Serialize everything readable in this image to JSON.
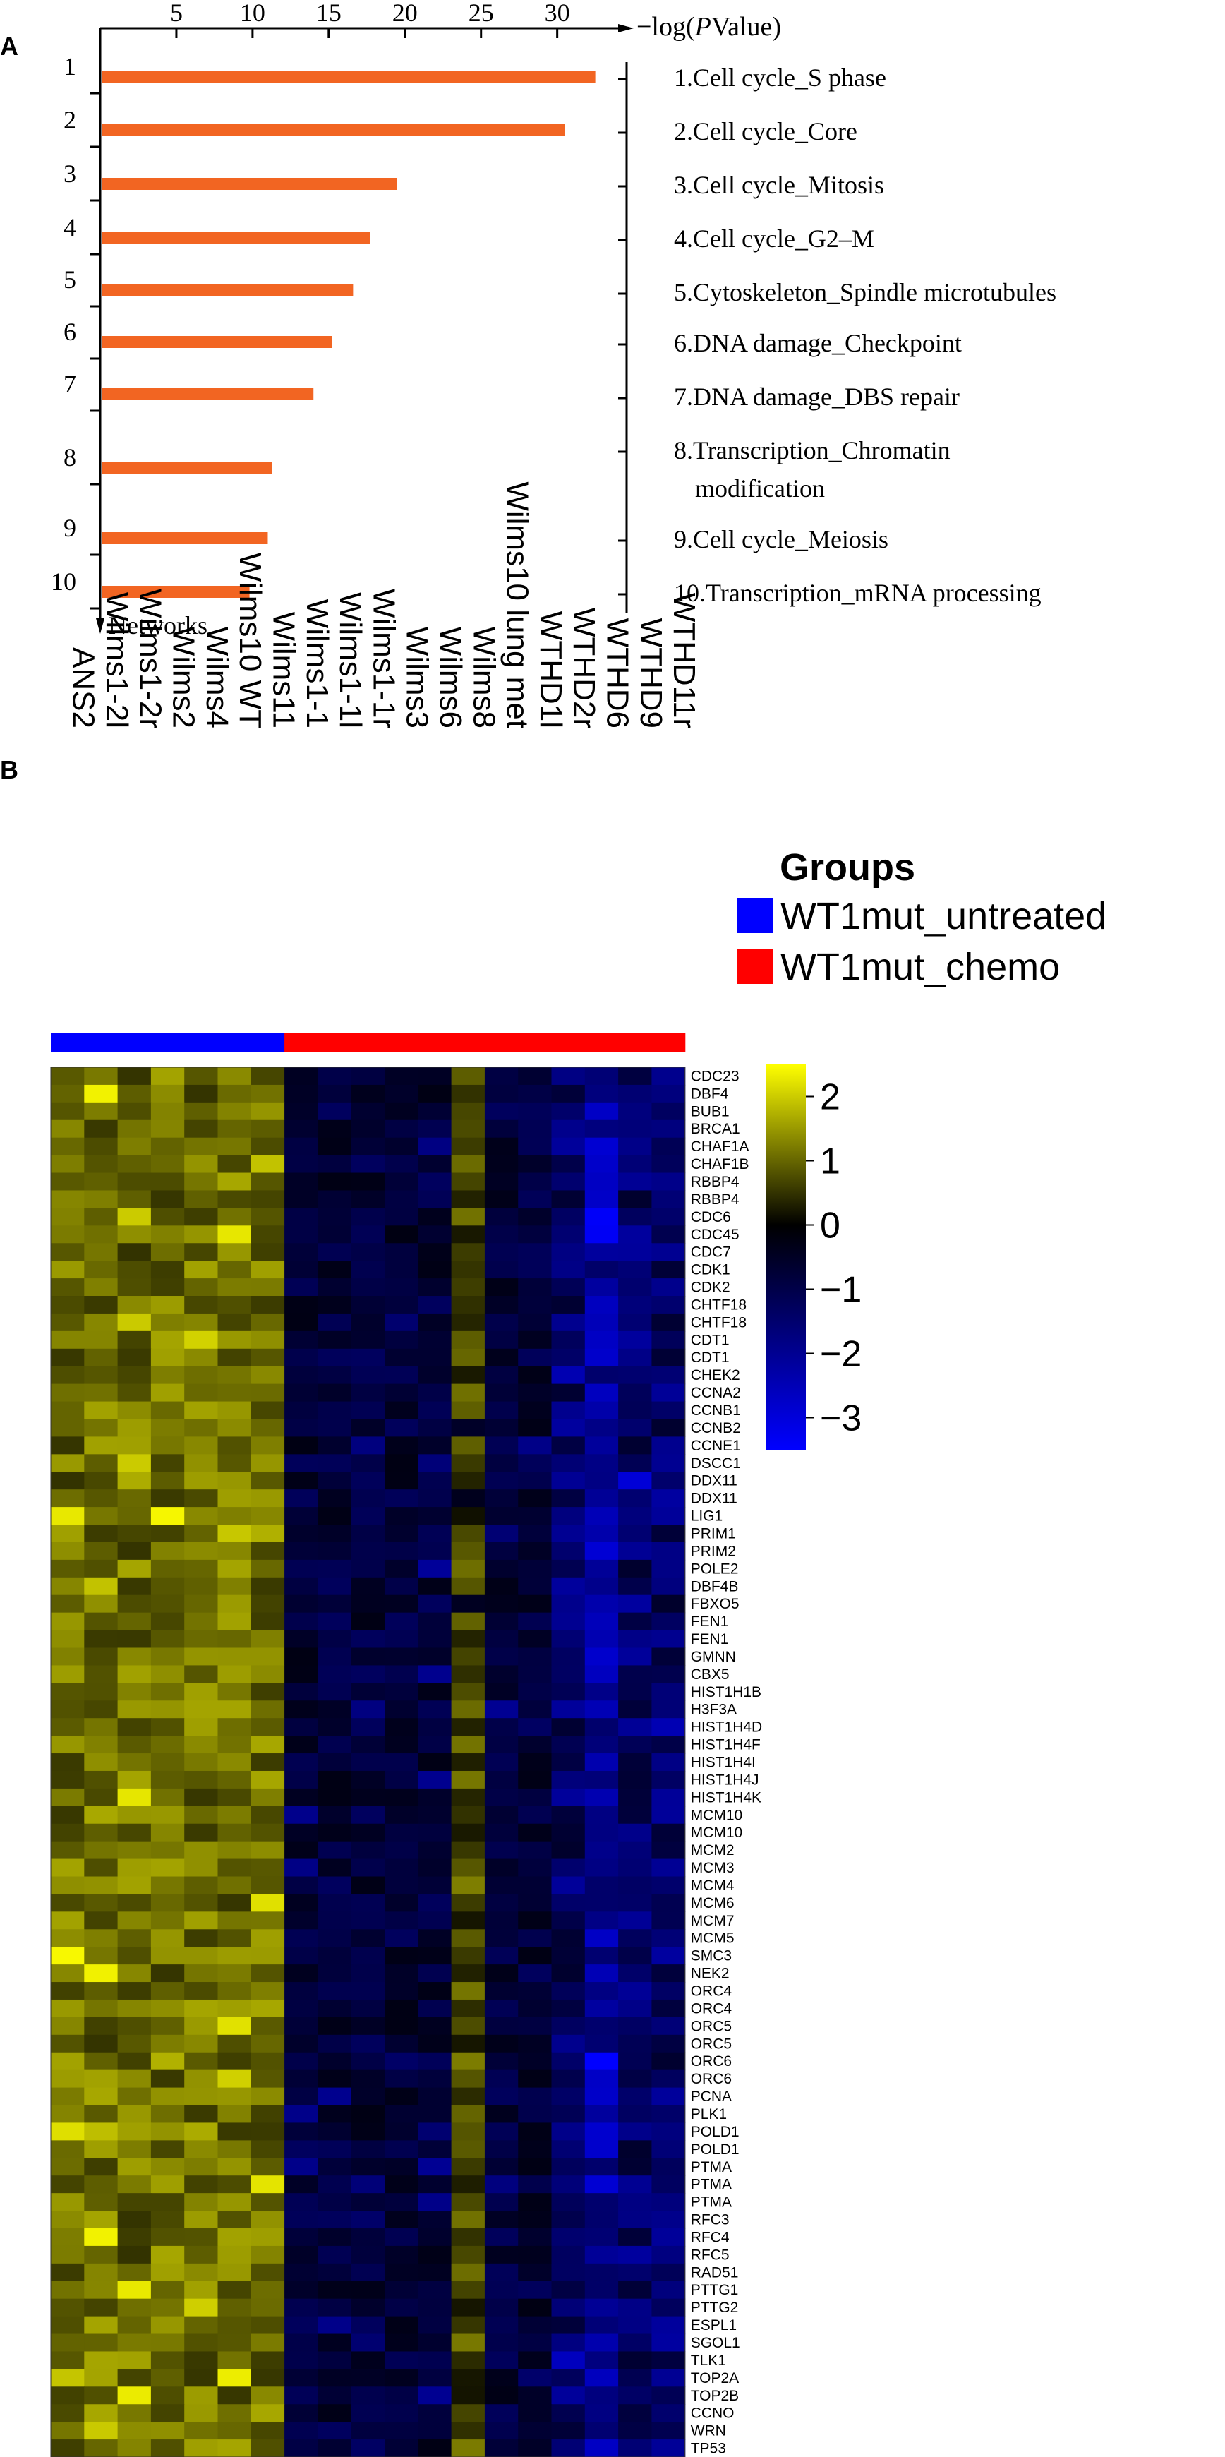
{
  "panels": {
    "a_label": "A",
    "b_label": "B"
  },
  "chart_data": [
    {
      "type": "bar",
      "orientation": "horizontal",
      "x_axis_label_prefix": "−log(",
      "x_axis_label_italic": "P",
      "x_axis_label_suffix": "Value)",
      "y_axis_label": "Networks",
      "x_ticks": [
        5,
        10,
        15,
        20,
        25,
        30
      ],
      "xlim": [
        0,
        34
      ],
      "categories": [
        "1",
        "2",
        "3",
        "4",
        "5",
        "6",
        "7",
        "8",
        "9",
        "10"
      ],
      "values": [
        32.5,
        30.5,
        19.5,
        17.7,
        16.6,
        15.2,
        14.0,
        11.3,
        11.0,
        9.8
      ],
      "bar_color": "#f26522",
      "legend_entries": [
        {
          "lines": [
            "1.Cell cycle_S phase"
          ]
        },
        {
          "lines": [
            "2.Cell cycle_Core"
          ]
        },
        {
          "lines": [
            "3.Cell cycle_Mitosis"
          ]
        },
        {
          "lines": [
            "4.Cell cycle_G2–M"
          ]
        },
        {
          "lines": [
            "5.Cytoskeleton_Spindle microtubules"
          ]
        },
        {
          "lines": [
            "6.DNA damage_Checkpoint"
          ]
        },
        {
          "lines": [
            "7.DNA damage_DBS repair"
          ]
        },
        {
          "lines": [
            "8.Transcription_Chromatin",
            "modification"
          ]
        },
        {
          "lines": [
            "9.Cell cycle_Meiosis"
          ]
        },
        {
          "lines": [
            "10.Transcription_mRNA processing"
          ]
        }
      ]
    },
    {
      "type": "heatmap",
      "samples": [
        "ANS2",
        "Wilms1-2l",
        "Wilms1-2r",
        "Wilms2",
        "Wilms4",
        "Wilms10 WT",
        "Wilms11",
        "Wilms1-1",
        "Wilms1-1l",
        "Wilms1-1r",
        "Wilms3",
        "Wilms6",
        "Wilms8",
        "Wilms10 lung met",
        "WTHD1l",
        "WTHD2r",
        "WTHD6",
        "WTHD9",
        "WTHD11r"
      ],
      "sample_groups": [
        "WT1mut_untreated",
        "WT1mut_untreated",
        "WT1mut_untreated",
        "WT1mut_untreated",
        "WT1mut_untreated",
        "WT1mut_untreated",
        "WT1mut_untreated",
        "WT1mut_chemo",
        "WT1mut_chemo",
        "WT1mut_chemo",
        "WT1mut_chemo",
        "WT1mut_chemo",
        "WT1mut_chemo",
        "WT1mut_chemo",
        "WT1mut_chemo",
        "WT1mut_chemo",
        "WT1mut_chemo",
        "WT1mut_chemo",
        "WT1mut_chemo"
      ],
      "groups_title": "Groups",
      "groups": [
        {
          "name": "WT1mut_untreated",
          "color": "#0000ff"
        },
        {
          "name": "WT1mut_chemo",
          "color": "#ff0000"
        }
      ],
      "genes": [
        "CDC23",
        "DBF4",
        "BUB1",
        "BRCA1",
        "CHAF1A",
        "CHAF1B",
        "RBBP4",
        "RBBP4",
        "CDC6",
        "CDC45",
        "CDC7",
        "CDK1",
        "CDK2",
        "CHTF18",
        "CHTF18",
        "CDT1",
        "CDT1",
        "CHEK2",
        "CCNA2",
        "CCNB1",
        "CCNB2",
        "CCNE1",
        "DSCC1",
        "DDX11",
        "DDX11",
        "LIG1",
        "PRIM1",
        "PRIM2",
        "POLE2",
        "DBF4B",
        "FBXO5",
        "FEN1",
        "FEN1",
        "GMNN",
        "CBX5",
        "HIST1H1B",
        "H3F3A",
        "HIST1H4D",
        "HIST1H4F",
        "HIST1H4I",
        "HIST1H4J",
        "HIST1H4K",
        "MCM10",
        "MCM10",
        "MCM2",
        "MCM3",
        "MCM4",
        "MCM6",
        "MCM7",
        "MCM5",
        "SMC3",
        "NEK2",
        "ORC4",
        "ORC4",
        "ORC5",
        "ORC5",
        "ORC6",
        "ORC6",
        "PCNA",
        "PLK1",
        "POLD1",
        "POLD1",
        "PTMA",
        "PTMA",
        "PTMA",
        "RFC3",
        "RFC4",
        "RFC5",
        "RAD51",
        "PTTG1",
        "PTTG2",
        "ESPL1",
        "SGOL1",
        "TLK1",
        "TOP2A",
        "TOP2B",
        "CCNO",
        "WRN",
        "TP53"
      ],
      "color_scale": {
        "ticks": [
          2,
          1,
          0,
          -1,
          -2,
          -3
        ],
        "tick_labels": [
          "2",
          "1",
          "0",
          "−1",
          "−2",
          "−3"
        ],
        "range": [
          -3.5,
          2.5
        ],
        "low_color": "#0000ff",
        "mid_color": "#000000",
        "high_color": "#ffff00"
      }
    }
  ]
}
